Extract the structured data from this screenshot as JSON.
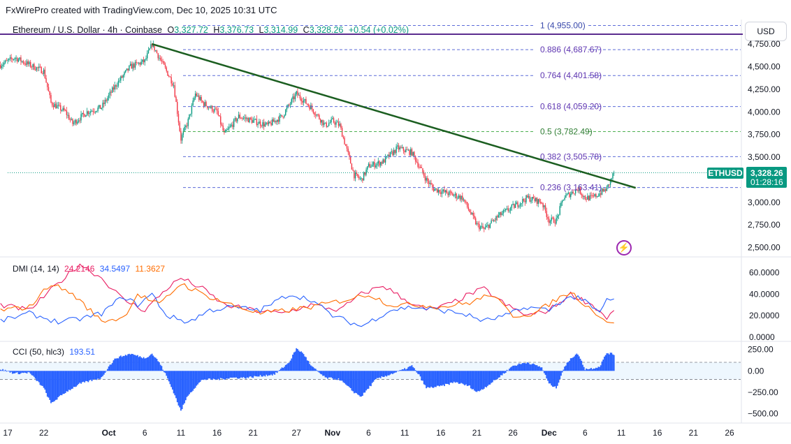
{
  "header": {
    "created_by": "FxWirePro created with TradingView.com, Dec 10, 2025 10:31 UTC"
  },
  "symbol": {
    "name": "Ethereum / U.S. Dollar · 4h · Coinbase",
    "o_label": "O",
    "o_value": "3,327.72",
    "h_label": "H",
    "h_value": "3,376.73",
    "l_label": "L",
    "l_value": "3,314.99",
    "c_label": "C",
    "c_value": "3,328.26",
    "change": "+0.54 (+0.02%)"
  },
  "currency_button": "USD",
  "price_tag": {
    "ticker": "ETHUSD",
    "price": "3,328.26",
    "countdown": "01:28:16"
  },
  "colors": {
    "up": "#089981",
    "down": "#f23645",
    "trendline": "#1b5e20",
    "fib_blue": "#5b6bd8",
    "fib_green": "#4caf50",
    "fib_top": "#5b2c8f",
    "dmi_plus": "#2962ff",
    "dmi_minus": "#ff6d00",
    "dmi_adx": "#e91e63",
    "cci": "#2962ff"
  },
  "chart_data": [
    {
      "type": "candlestick",
      "title": "Ethereum / U.S. Dollar · 4h · Coinbase",
      "x_tick_labels": [
        "17",
        "22",
        "Oct",
        "6",
        "11",
        "16",
        "21",
        "27",
        "Nov",
        "6",
        "11",
        "16",
        "21",
        "26",
        "Dec",
        "6",
        "11",
        "16",
        "21",
        "26"
      ],
      "y_ticks": [
        2500,
        2750,
        3000,
        3250,
        3500,
        3750,
        4000,
        4250,
        4500,
        4750
      ],
      "y_tick_labels": [
        "2,500.00",
        "2,750.00",
        "3,000.00",
        "3,250.00",
        "3,500.00",
        "3,750.00",
        "4,000.00",
        "4,250.00",
        "4,500.00",
        "4,750.00"
      ],
      "ylim": [
        2420,
        4990
      ],
      "last_price": 3328.26,
      "price_anchors": [
        [
          "Sep 16",
          4520
        ],
        [
          "Sep 18",
          4600
        ],
        [
          "Sep 20",
          4520
        ],
        [
          "Sep 22",
          4450
        ],
        [
          "Sep 23",
          4100
        ],
        [
          "Sep 25",
          4000
        ],
        [
          "Sep 26",
          3870
        ],
        [
          "Sep 28",
          4000
        ],
        [
          "Sep 30",
          4050
        ],
        [
          "Oct 2",
          4300
        ],
        [
          "Oct 4",
          4500
        ],
        [
          "Oct 6",
          4560
        ],
        [
          "Oct 7",
          4750
        ],
        [
          "Oct 8",
          4600
        ],
        [
          "Oct 10",
          4300
        ],
        [
          "Oct 11",
          3700
        ],
        [
          "Oct 12",
          3900
        ],
        [
          "Oct 13",
          4200
        ],
        [
          "Oct 14",
          4100
        ],
        [
          "Oct 16",
          4000
        ],
        [
          "Oct 17",
          3750
        ],
        [
          "Oct 19",
          3950
        ],
        [
          "Oct 21",
          3900
        ],
        [
          "Oct 23",
          3850
        ],
        [
          "Oct 25",
          3950
        ],
        [
          "Oct 27",
          4200
        ],
        [
          "Oct 29",
          4050
        ],
        [
          "Oct 31",
          3850
        ],
        [
          "Nov 1",
          3900
        ],
        [
          "Nov 2",
          3850
        ],
        [
          "Nov 4",
          3300
        ],
        [
          "Nov 5",
          3250
        ],
        [
          "Nov 6",
          3400
        ],
        [
          "Nov 8",
          3450
        ],
        [
          "Nov 10",
          3600
        ],
        [
          "Nov 12",
          3550
        ],
        [
          "Nov 14",
          3250
        ],
        [
          "Nov 15",
          3150
        ],
        [
          "Nov 17",
          3100
        ],
        [
          "Nov 19",
          3050
        ],
        [
          "Nov 20",
          2900
        ],
        [
          "Nov 21",
          2750
        ],
        [
          "Nov 22",
          2700
        ],
        [
          "Nov 24",
          2850
        ],
        [
          "Nov 26",
          2950
        ],
        [
          "Nov 28",
          3050
        ],
        [
          "Nov 30",
          3000
        ],
        [
          "Dec 1",
          2800
        ],
        [
          "Dec 2",
          2800
        ],
        [
          "Dec 3",
          3050
        ],
        [
          "Dec 5",
          3150
        ],
        [
          "Dec 6",
          3050
        ],
        [
          "Dec 7",
          3050
        ],
        [
          "Dec 8",
          3100
        ],
        [
          "Dec 9",
          3150
        ],
        [
          "Dec 10",
          3328.26
        ]
      ],
      "trendline": {
        "from": [
          "Oct 7",
          4750
        ],
        "to": [
          "Dec 13",
          3160
        ]
      },
      "fibonacci": [
        {
          "level": "1",
          "price": 4955.0,
          "label": "1 (4,955.00)"
        },
        {
          "level": "0.886",
          "price": 4687.67,
          "label": "0.886 (4,687.67)"
        },
        {
          "level": "0.764",
          "price": 4401.58,
          "label": "0.764 (4,401.58)"
        },
        {
          "level": "0.618",
          "price": 4059.2,
          "label": "0.618 (4,059.20)"
        },
        {
          "level": "0.5",
          "price": 3782.49,
          "label": "0.5 (3,782.49)"
        },
        {
          "level": "0.382",
          "price": 3505.78,
          "label": "0.382 (3,505.78)"
        },
        {
          "level": "0.236",
          "price": 3163.41,
          "label": "0.236 (3,163.41)"
        }
      ]
    },
    {
      "type": "line",
      "title": "DMI (14, 14)",
      "values_label": [
        "24.2146",
        "34.5497",
        "11.3627"
      ],
      "series": [
        {
          "name": "24.2146",
          "color": "#e91e63",
          "anchors": [
            [
              "Sep 16",
              30
            ],
            [
              "Sep 20",
              25
            ],
            [
              "Sep 24",
              50
            ],
            [
              "Sep 27",
              68
            ],
            [
              "Sep 30",
              55
            ],
            [
              "Oct 3",
              35
            ],
            [
              "Oct 6",
              25
            ],
            [
              "Oct 9",
              45
            ],
            [
              "Oct 11",
              55
            ],
            [
              "Oct 14",
              45
            ],
            [
              "Oct 17",
              30
            ],
            [
              "Oct 21",
              25
            ],
            [
              "Oct 25",
              22
            ],
            [
              "Oct 29",
              30
            ],
            [
              "Nov 2",
              25
            ],
            [
              "Nov 5",
              40
            ],
            [
              "Nov 8",
              48
            ],
            [
              "Nov 11",
              35
            ],
            [
              "Nov 14",
              25
            ],
            [
              "Nov 17",
              30
            ],
            [
              "Nov 20",
              40
            ],
            [
              "Nov 22",
              45
            ],
            [
              "Nov 25",
              30
            ],
            [
              "Nov 28",
              20
            ],
            [
              "Dec 1",
              25
            ],
            [
              "Dec 4",
              40
            ],
            [
              "Dec 7",
              30
            ],
            [
              "Dec 9",
              18
            ],
            [
              "Dec 10",
              24.2146
            ]
          ]
        },
        {
          "name": "34.5497",
          "color": "#2962ff",
          "anchors": [
            [
              "Sep 16",
              15
            ],
            [
              "Sep 20",
              22
            ],
            [
              "Sep 24",
              14
            ],
            [
              "Sep 27",
              17
            ],
            [
              "Sep 30",
              22
            ],
            [
              "Oct 3",
              38
            ],
            [
              "Oct 5",
              30
            ],
            [
              "Oct 7",
              40
            ],
            [
              "Oct 9",
              20
            ],
            [
              "Oct 12",
              14
            ],
            [
              "Oct 15",
              25
            ],
            [
              "Oct 18",
              28
            ],
            [
              "Oct 22",
              25
            ],
            [
              "Oct 26",
              40
            ],
            [
              "Oct 29",
              35
            ],
            [
              "Nov 1",
              20
            ],
            [
              "Nov 5",
              10
            ],
            [
              "Nov 9",
              25
            ],
            [
              "Nov 12",
              28
            ],
            [
              "Nov 16",
              25
            ],
            [
              "Nov 19",
              22
            ],
            [
              "Nov 22",
              15
            ],
            [
              "Nov 25",
              20
            ],
            [
              "Nov 28",
              28
            ],
            [
              "Dec 1",
              25
            ],
            [
              "Dec 3",
              35
            ],
            [
              "Dec 5",
              38
            ],
            [
              "Dec 8",
              22
            ],
            [
              "Dec 9",
              35
            ],
            [
              "Dec 10",
              34.5497
            ]
          ]
        },
        {
          "name": "11.3627",
          "color": "#ff6d00",
          "anchors": [
            [
              "Sep 16",
              25
            ],
            [
              "Sep 20",
              28
            ],
            [
              "Sep 23",
              50
            ],
            [
              "Sep 26",
              40
            ],
            [
              "Sep 30",
              15
            ],
            [
              "Oct 3",
              18
            ],
            [
              "Oct 5",
              40
            ],
            [
              "Oct 8",
              30
            ],
            [
              "Oct 11",
              50
            ],
            [
              "Oct 14",
              40
            ],
            [
              "Oct 18",
              30
            ],
            [
              "Oct 22",
              22
            ],
            [
              "Oct 26",
              25
            ],
            [
              "Oct 29",
              28
            ],
            [
              "Nov 3",
              35
            ],
            [
              "Nov 6",
              40
            ],
            [
              "Nov 9",
              30
            ],
            [
              "Nov 13",
              30
            ],
            [
              "Nov 16",
              28
            ],
            [
              "Nov 20",
              32
            ],
            [
              "Nov 23",
              40
            ],
            [
              "Nov 26",
              20
            ],
            [
              "Nov 29",
              22
            ],
            [
              "Dec 2",
              35
            ],
            [
              "Dec 4",
              42
            ],
            [
              "Dec 7",
              25
            ],
            [
              "Dec 9",
              15
            ],
            [
              "Dec 10",
              11.3627
            ]
          ]
        }
      ],
      "y_ticks": [
        0,
        20,
        40,
        60
      ],
      "y_tick_labels": [
        "0.0000",
        "20.0000",
        "40.0000",
        "60.0000"
      ],
      "ylim": [
        -2,
        72
      ]
    },
    {
      "type": "histogram",
      "title": "CCI (50, hlc3)",
      "values_label": [
        "193.51"
      ],
      "bands": [
        100,
        -100
      ],
      "y_ticks": [
        -500,
        -250,
        0,
        250
      ],
      "y_tick_labels": [
        "−500.00",
        "−250.00",
        "0.00",
        "250.00"
      ],
      "ylim": [
        -560,
        320
      ],
      "anchors": [
        [
          "Sep 16",
          20
        ],
        [
          "Sep 18",
          -30
        ],
        [
          "Sep 20",
          -20
        ],
        [
          "Sep 22",
          -200
        ],
        [
          "Sep 23",
          -380
        ],
        [
          "Sep 25",
          -250
        ],
        [
          "Sep 27",
          -150
        ],
        [
          "Sep 30",
          -80
        ],
        [
          "Oct 1",
          50
        ],
        [
          "Oct 2",
          150
        ],
        [
          "Oct 4",
          200
        ],
        [
          "Oct 6",
          150
        ],
        [
          "Oct 7",
          200
        ],
        [
          "Oct 8",
          100
        ],
        [
          "Oct 9",
          -60
        ],
        [
          "Oct 10",
          -250
        ],
        [
          "Oct 11",
          -470
        ],
        [
          "Oct 12",
          -280
        ],
        [
          "Oct 14",
          -100
        ],
        [
          "Oct 16",
          -100
        ],
        [
          "Oct 18",
          -80
        ],
        [
          "Oct 20",
          -80
        ],
        [
          "Oct 22",
          -60
        ],
        [
          "Oct 24",
          -40
        ],
        [
          "Oct 26",
          100
        ],
        [
          "Oct 27",
          260
        ],
        [
          "Oct 28",
          200
        ],
        [
          "Oct 29",
          60
        ],
        [
          "Oct 31",
          -80
        ],
        [
          "Nov 2",
          -100
        ],
        [
          "Nov 4",
          -250
        ],
        [
          "Nov 5",
          -300
        ],
        [
          "Nov 7",
          -100
        ],
        [
          "Nov 9",
          -40
        ],
        [
          "Nov 11",
          20
        ],
        [
          "Nov 12",
          60
        ],
        [
          "Nov 13",
          -50
        ],
        [
          "Nov 14",
          -200
        ],
        [
          "Nov 16",
          -180
        ],
        [
          "Nov 18",
          -130
        ],
        [
          "Nov 20",
          -180
        ],
        [
          "Nov 21",
          -250
        ],
        [
          "Nov 22",
          -200
        ],
        [
          "Nov 24",
          -80
        ],
        [
          "Nov 26",
          60
        ],
        [
          "Nov 28",
          100
        ],
        [
          "Nov 30",
          40
        ],
        [
          "Dec 1",
          -150
        ],
        [
          "Dec 2",
          -200
        ],
        [
          "Dec 3",
          20
        ],
        [
          "Dec 4",
          150
        ],
        [
          "Dec 5",
          200
        ],
        [
          "Dec 6",
          20
        ],
        [
          "Dec 7",
          30
        ],
        [
          "Dec 8",
          50
        ],
        [
          "Dec 9",
          210
        ],
        [
          "Dec 10",
          193.51
        ]
      ]
    }
  ]
}
